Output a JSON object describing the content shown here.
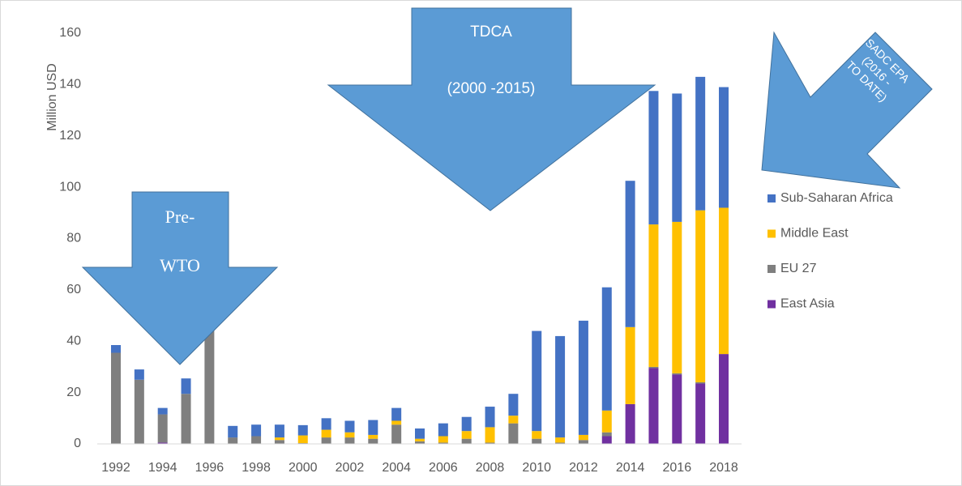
{
  "chart_data": {
    "type": "bar",
    "stacked": true,
    "y_label": "Million USD",
    "categories": [
      "1992",
      null,
      "1994",
      null,
      "1996",
      null,
      "1998",
      null,
      "2000",
      null,
      "2002",
      null,
      "2004",
      null,
      "2006",
      null,
      "2008",
      null,
      "2010",
      null,
      "2012",
      null,
      "2014",
      null,
      "2016",
      null,
      "2018"
    ],
    "series": [
      {
        "name": "East Asia",
        "color": "#7030a0",
        "values": [
          0,
          0,
          0.5,
          0,
          0,
          0,
          0,
          0,
          0,
          0,
          0,
          0,
          0,
          0,
          0,
          0,
          0,
          0,
          0,
          0,
          0,
          3,
          15.5,
          29.5,
          27,
          23.5,
          35
        ]
      },
      {
        "name": "EU 27",
        "color": "#7f7f7f",
        "values": [
          35.5,
          25,
          11,
          19.5,
          45,
          2.5,
          3,
          1.5,
          0.3,
          2.5,
          2.5,
          2,
          7.5,
          1,
          0.5,
          2,
          0.5,
          8,
          2,
          0.5,
          1.5,
          1.5,
          0,
          0.5,
          0.5,
          0.5,
          0
        ]
      },
      {
        "name": "Middle East",
        "color": "#ffc000",
        "values": [
          0,
          0,
          0,
          0,
          0,
          0,
          0,
          1,
          3,
          3,
          2,
          1.5,
          1.5,
          1,
          2.5,
          3,
          6,
          3,
          3,
          2,
          2,
          8.5,
          30,
          55.5,
          59,
          67,
          57
        ]
      },
      {
        "name": "Sub-Saharan Africa",
        "color": "#4472c4",
        "values": [
          3,
          4,
          2.5,
          6,
          3,
          4.5,
          4.5,
          5,
          4,
          4.5,
          4.5,
          5.8,
          5,
          4,
          5,
          5.5,
          8,
          8.5,
          39,
          39.5,
          44.5,
          48,
          57,
          52,
          50,
          52,
          47
        ]
      }
    ],
    "ylim": [
      0,
      160
    ],
    "yticks": [
      0,
      20,
      40,
      60,
      80,
      100,
      120,
      140,
      160
    ],
    "grid": false,
    "legend": "right",
    "annotations": [
      "TDCA",
      "(2000 -2015)",
      "Pre-",
      "WTO",
      "SADC EPA",
      "(2016 -",
      "TO DATE)"
    ]
  }
}
